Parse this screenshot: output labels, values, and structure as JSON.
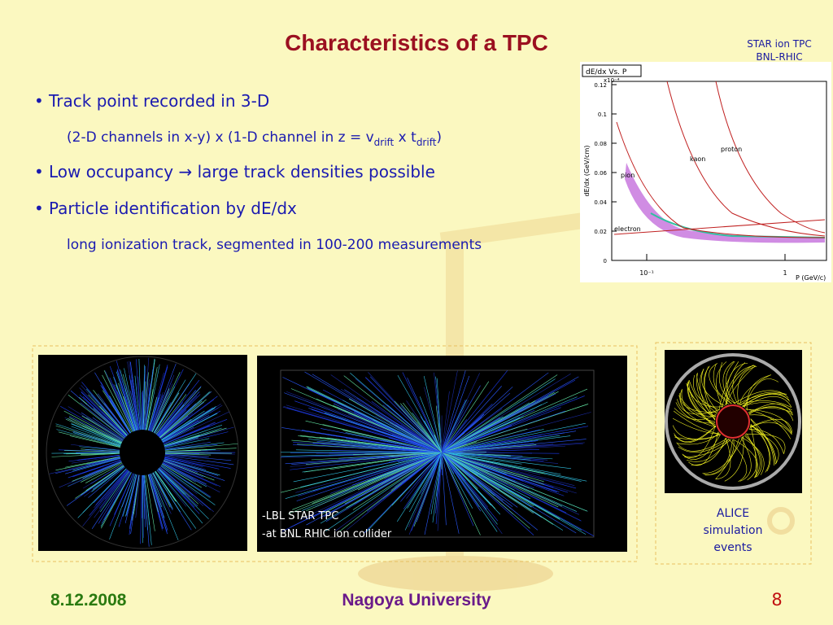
{
  "title": "Characteristics of a TPC",
  "corner_caption": [
    "STAR ion TPC",
    "BNL-RHIC"
  ],
  "bullets": [
    {
      "text": "Track point recorded in 3-D",
      "detail_parts": [
        "(2-D channels in x-y) x (1-D channel in z = v",
        "drift",
        " x t",
        "drift",
        ")"
      ]
    },
    {
      "text": "Low occupancy → large track densities possible"
    },
    {
      "text": "Particle identification by dE/dx",
      "detail_parts": [
        "long ionization track, segmented in 100-200 measurements"
      ]
    }
  ],
  "plot": {
    "title": "dE/dx Vs. P",
    "y_label": "dE/dx (GeV/cm)",
    "x_label": "P (GeV/c)",
    "y_exponent": "x10⁻⁴",
    "y_tick_labels": [
      "0",
      "0.02",
      "0.04",
      "0.06",
      "0.08",
      "0.1",
      "0.12"
    ],
    "x_tick_labels": [
      "10⁻¹",
      "1"
    ],
    "particles": [
      "pion",
      "kaon",
      "proton",
      "electron"
    ]
  },
  "star_caption": [
    "-LBL STAR TPC",
    "-at BNL RHIC ion collider"
  ],
  "alice_caption": [
    "ALICE",
    "simulation",
    "events"
  ],
  "footer": {
    "date": "8.12.2008",
    "institution": "Nagoya University",
    "page": "8"
  }
}
